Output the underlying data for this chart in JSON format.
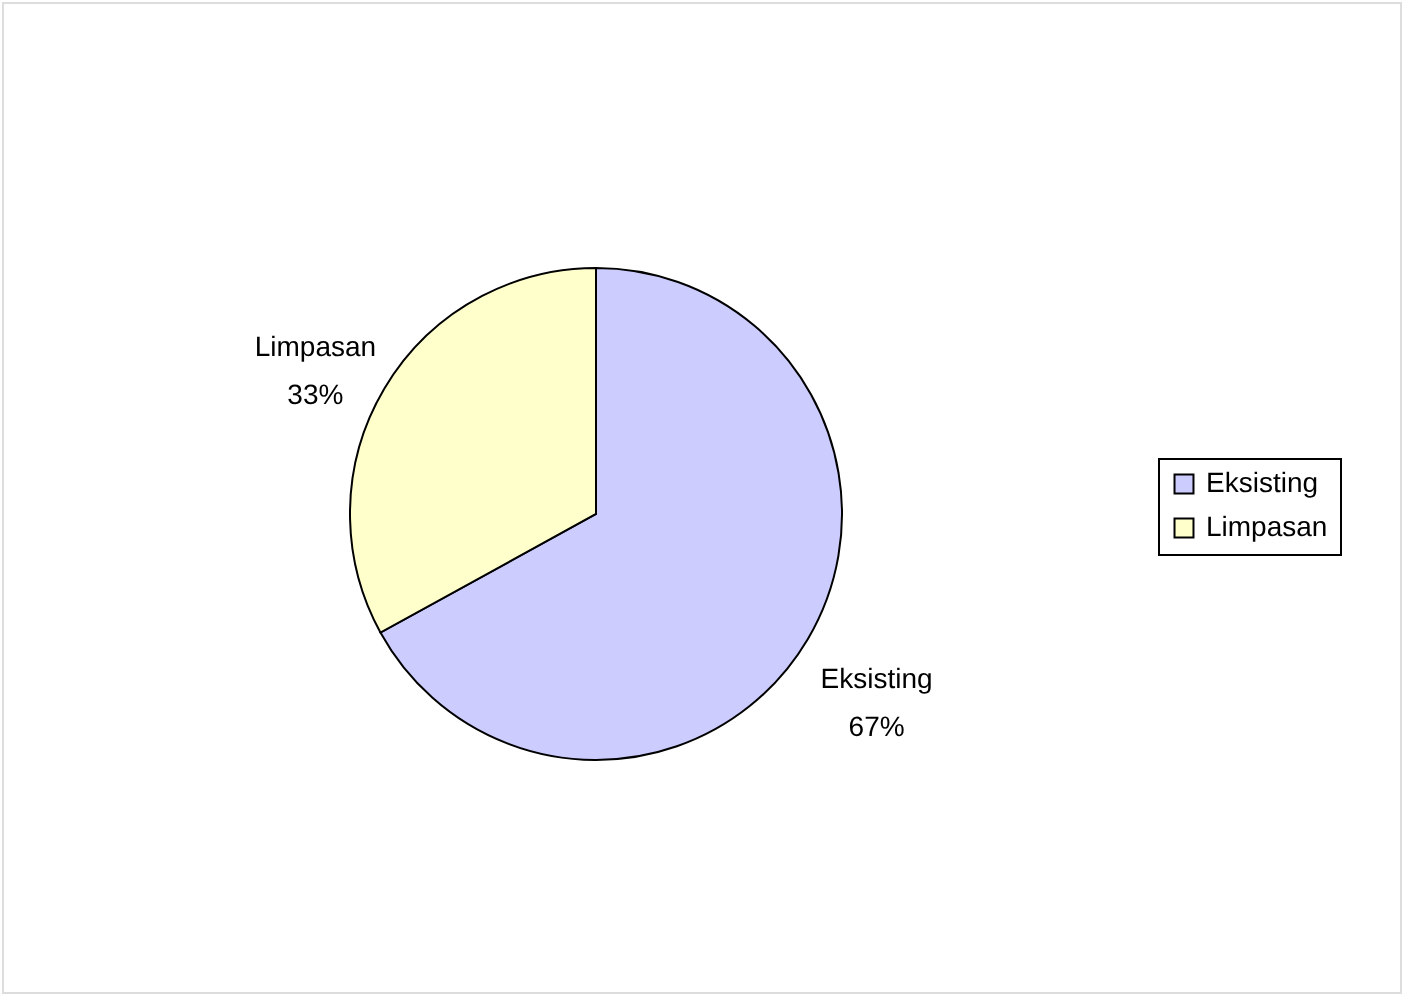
{
  "chart_data": {
    "type": "pie",
    "categories": [
      "Eksisting",
      "Limpasan"
    ],
    "values": [
      67,
      33
    ],
    "colors": [
      "#ccccff",
      "#ffffcc"
    ],
    "value_labels": [
      "67%",
      "33%"
    ],
    "legend": "right"
  }
}
